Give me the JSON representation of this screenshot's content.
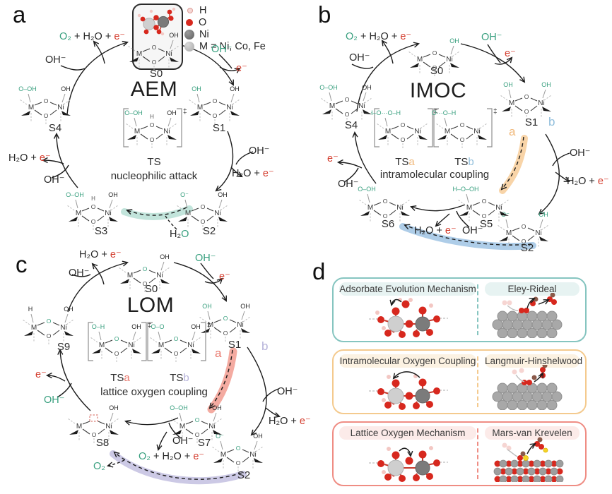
{
  "atoms": {
    "metal": "M",
    "nickel": "Ni",
    "oxygen": "O"
  },
  "colors": {
    "green": "#379f7e",
    "red": "#d43d2e",
    "black": "#262626",
    "orange": "#f0b87a",
    "blue": "#90bedb",
    "salmon": "#e8756a",
    "lavender": "#b5b2d9",
    "teal_path": "#c2e4db",
    "orange_path": "#f8d4a8",
    "blue_path": "#aecde8",
    "salmon_path": "#f4aba1",
    "lavender_path": "#ccc9e5",
    "box_teal": "#86c5c0",
    "box_orange": "#f4ca8e",
    "box_red": "#ef8d84"
  },
  "legend": {
    "items": [
      {
        "label": "H"
      },
      {
        "label": "O"
      },
      {
        "label": "Ni"
      },
      {
        "label": "M = Ni, Co, Fe"
      }
    ]
  },
  "panel_a": {
    "letter": "a",
    "title": "AEM",
    "caption": "nucleophilic attack",
    "dagger": "‡",
    "states": [
      {
        "label": "S0",
        "ligL": "",
        "ligR": "OH",
        "ligR_c": "k"
      },
      {
        "label": "S1",
        "ligL": "OH",
        "ligL_c": "g",
        "ligR": "OH",
        "ligR_c": "k"
      },
      {
        "label": "S2",
        "ligL": "O⁻",
        "ligL_c": "g",
        "ligR": "OH",
        "ligR_c": "k"
      },
      {
        "label": "S3",
        "ligL": "O–OH",
        "ligL_c": "g",
        "ligR": "OH",
        "ligR_c": "k",
        "midH": "H"
      },
      {
        "label": "S4",
        "ligL": "O–OH",
        "ligL_c": "g",
        "ligR": "OH",
        "ligR_c": "k"
      },
      {
        "label_base": "TS",
        "suffix": "",
        "bracket": true,
        "ligL": "O–OH",
        "ligL_c": "g",
        "ligR": "OH",
        "ligR_c": "k",
        "midH": "H"
      }
    ],
    "rx": {
      "products": [
        [
          "O₂",
          "g"
        ],
        [
          " + H₂O + ",
          "k"
        ],
        [
          "e⁻",
          "r"
        ]
      ],
      "oh1": "OH⁻",
      "oh2": "OH⁻",
      "e1": "e⁻",
      "oh3": "OH⁻",
      "h2oe1": [
        [
          "H₂O + ",
          "k"
        ],
        [
          "e⁻",
          "r"
        ]
      ],
      "h2o": [
        [
          "H₂",
          "k"
        ],
        [
          "O",
          "g"
        ]
      ],
      "oh4": "OH⁻",
      "h2oe2": [
        [
          "H₂O + ",
          "k"
        ],
        [
          "e⁻",
          "r"
        ]
      ]
    }
  },
  "panel_b": {
    "letter": "b",
    "title": "IMOC",
    "caption": "intramolecular coupling",
    "dagger": "‡",
    "path_a": "a",
    "path_b": "b",
    "states": [
      {
        "label": "S0",
        "ligL": "",
        "ligR": "OH",
        "ligR_c": "g"
      },
      {
        "label": "S1",
        "ligL": "OH",
        "ligL_c": "g",
        "ligR": "OH",
        "ligR_c": "g"
      },
      {
        "label": "S2",
        "ligL": "O⁻",
        "ligL_c": "g",
        "ligR": "OH",
        "ligR_c": "g"
      },
      {
        "label": "S5",
        "ligL": "H–O–OH",
        "ligL_c": "g",
        "ligR": ""
      },
      {
        "label": "S6",
        "ligL": "O–OH",
        "ligL_c": "g",
        "ligR": ""
      },
      {
        "label": "S4",
        "ligL": "O–OH",
        "ligL_c": "g",
        "ligR": "OH",
        "ligR_c": "k"
      },
      {
        "label_base": "TS",
        "suffix": "a",
        "suffix_c": "orange",
        "bracket": true,
        "ligL": "H–O⋯O–H",
        "ligL_c": "g",
        "ligR": ""
      },
      {
        "label_base": "TS",
        "suffix": "b",
        "suffix_c": "blue",
        "bracket": true,
        "ligL": "O⋯O–H",
        "ligL_c": "g",
        "ligR": ""
      }
    ],
    "rx": {
      "products": [
        [
          "O₂",
          "g"
        ],
        [
          " + H₂O + ",
          "k"
        ],
        [
          "e⁻",
          "r"
        ]
      ],
      "oh1": "OH⁻",
      "oh2": "OH⁻",
      "e1": "e⁻",
      "oh3": "OH⁻",
      "h2oe1": [
        [
          "H₂O + ",
          "k"
        ],
        [
          "e⁻",
          "r"
        ]
      ],
      "oh4": "OH⁻",
      "h2oe2": [
        [
          "H₂O + ",
          "k"
        ],
        [
          "e⁻",
          "r"
        ]
      ],
      "e2": "e⁻",
      "oh5": "OH⁻"
    }
  },
  "panel_c": {
    "letter": "c",
    "title": "LOM",
    "caption": "lattice oxygen coupling",
    "dagger": "‡",
    "path_a": "a",
    "path_b": "b",
    "states": [
      {
        "label": "S0",
        "ligL": "",
        "ligR": "OH",
        "ligR_c": "k",
        "bridge_c": "g"
      },
      {
        "label": "S1",
        "ligL": "OH",
        "ligL_c": "g",
        "ligR": "OH",
        "ligR_c": "k",
        "bridge_c": "g"
      },
      {
        "label": "S2",
        "ligL": "O⁻",
        "ligL_c": "g",
        "ligR": "OH",
        "ligR_c": "k",
        "bridge_c": "g"
      },
      {
        "label": "S7",
        "ligL": "O–OH",
        "ligL_c": "g",
        "ligR": "OH",
        "ligR_c": "k",
        "bridge_c": "g"
      },
      {
        "label": "S8",
        "ligL": "",
        "ligR": "OH",
        "ligR_c": "k",
        "vacancy": true
      },
      {
        "label": "S9",
        "ligL": "H",
        "ligL_c": "k",
        "ligR": "OH",
        "ligR_c": "k",
        "bridge_c": "g"
      },
      {
        "label_base": "TS",
        "suffix": "a",
        "suffix_c": "salmon",
        "bracket": true,
        "ligL": "O–H",
        "ligL_c": "g",
        "ligR": "OH",
        "ligR_c": "k",
        "bridge_c": "g"
      },
      {
        "label_base": "TS",
        "suffix": "b",
        "suffix_c": "lavender",
        "bracket": true,
        "ligL": "O–O",
        "ligL_c": "g",
        "ligR": "OH",
        "ligR_c": "k",
        "bridge_c": "g"
      }
    ],
    "rx": {
      "h2oe1": [
        [
          "H₂O + ",
          "k"
        ],
        [
          "e⁻",
          "r"
        ]
      ],
      "oh1": "OH⁻",
      "oh2": "OH⁻",
      "e1": "e⁻",
      "oh3": "OH⁻",
      "h2oe2": [
        [
          "H₂O + ",
          "k"
        ],
        [
          "e⁻",
          "r"
        ]
      ],
      "oh4": "OH⁻",
      "products": [
        [
          "O₂",
          "g"
        ],
        [
          " + H₂O + ",
          "k"
        ],
        [
          "e⁻",
          "r"
        ]
      ],
      "o2": "O₂",
      "e2": "e⁻",
      "oh5": "OH⁻"
    }
  },
  "panel_d": {
    "letter": "d",
    "boxes": [
      {
        "left_title": "Adsorbate Evolution Mechanism",
        "right_title": "Eley-Rideal"
      },
      {
        "left_title": "Intramolecular Oxygen Coupling",
        "right_title": "Langmuir-Hinshelwood"
      },
      {
        "left_title": "Lattice Oxygen Mechanism",
        "right_title": "Mars-van Krevelen"
      }
    ]
  }
}
